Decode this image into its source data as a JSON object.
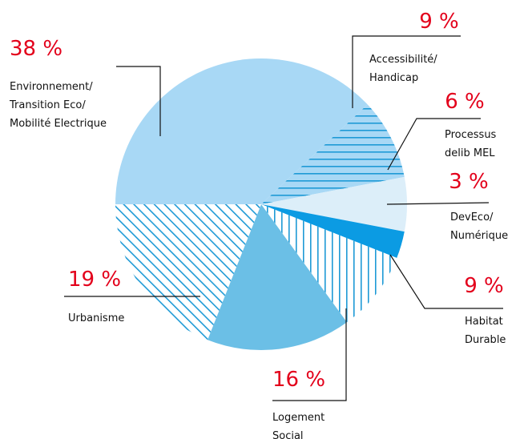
{
  "chart_data": {
    "type": "pie",
    "labels": [
      [
        "Environnement/",
        "Transition Eco/",
        "Mobilité Electrique"
      ],
      [
        "Accessibilité/",
        "Handicap"
      ],
      [
        "Processus",
        "delib MEL"
      ],
      [
        "DevEco/",
        "Numérique"
      ],
      [
        "Habitat",
        "Durable"
      ],
      [
        "Logement",
        "Social"
      ],
      [
        "Urbanisme"
      ]
    ],
    "values": [
      38,
      9,
      6,
      3,
      9,
      16,
      19
    ],
    "value_labels": [
      "38 %",
      "9 %",
      "6 %",
      "3 %",
      "9 %",
      "16 %",
      "19 %"
    ],
    "colors": [
      "#a8d8f5",
      "#a8d8f5",
      "#dceef9",
      "#0b9be3",
      "#ffffff",
      "#6bbfe6",
      "#ffffff"
    ],
    "hatch": [
      "none",
      "horizontal",
      "none",
      "none",
      "vertical",
      "none",
      "diagonal"
    ],
    "hatch_color": "#1e9ad6",
    "label_color": "#e3001b"
  }
}
